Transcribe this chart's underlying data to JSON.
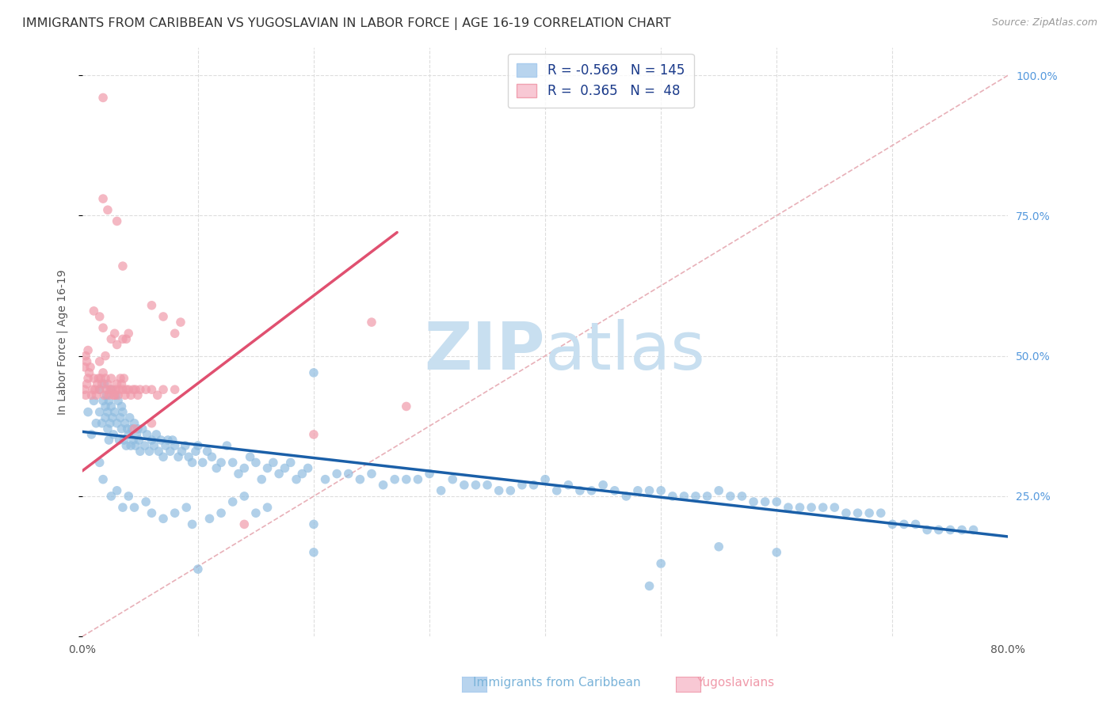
{
  "title": "IMMIGRANTS FROM CARIBBEAN VS YUGOSLAVIAN IN LABOR FORCE | AGE 16-19 CORRELATION CHART",
  "source": "Source: ZipAtlas.com",
  "ylabel": "In Labor Force | Age 16-19",
  "x_range": [
    0.0,
    0.8
  ],
  "y_range": [
    0.0,
    1.05
  ],
  "scatter_caribbean": {
    "color": "#90bde0",
    "alpha": 0.7,
    "size": 70,
    "x": [
      0.005,
      0.008,
      0.01,
      0.012,
      0.015,
      0.015,
      0.017,
      0.018,
      0.019,
      0.02,
      0.02,
      0.021,
      0.022,
      0.022,
      0.023,
      0.023,
      0.024,
      0.025,
      0.025,
      0.026,
      0.027,
      0.028,
      0.029,
      0.03,
      0.031,
      0.032,
      0.033,
      0.034,
      0.034,
      0.035,
      0.036,
      0.037,
      0.038,
      0.039,
      0.04,
      0.041,
      0.042,
      0.043,
      0.044,
      0.045,
      0.046,
      0.047,
      0.048,
      0.049,
      0.05,
      0.052,
      0.054,
      0.056,
      0.058,
      0.06,
      0.062,
      0.064,
      0.066,
      0.068,
      0.07,
      0.072,
      0.074,
      0.076,
      0.078,
      0.08,
      0.083,
      0.086,
      0.089,
      0.092,
      0.095,
      0.098,
      0.1,
      0.104,
      0.108,
      0.112,
      0.116,
      0.12,
      0.125,
      0.13,
      0.135,
      0.14,
      0.145,
      0.15,
      0.155,
      0.16,
      0.165,
      0.17,
      0.175,
      0.18,
      0.185,
      0.19,
      0.195,
      0.2,
      0.21,
      0.22,
      0.23,
      0.24,
      0.25,
      0.26,
      0.27,
      0.28,
      0.29,
      0.3,
      0.31,
      0.32,
      0.33,
      0.34,
      0.35,
      0.36,
      0.37,
      0.38,
      0.39,
      0.4,
      0.41,
      0.42,
      0.43,
      0.44,
      0.45,
      0.46,
      0.47,
      0.48,
      0.49,
      0.5,
      0.51,
      0.52,
      0.53,
      0.54,
      0.55,
      0.56,
      0.57,
      0.58,
      0.59,
      0.6,
      0.61,
      0.62,
      0.63,
      0.64,
      0.65,
      0.66,
      0.67,
      0.68,
      0.69,
      0.7,
      0.71,
      0.72,
      0.73,
      0.74,
      0.75,
      0.76,
      0.77
    ],
    "y": [
      0.4,
      0.36,
      0.42,
      0.38,
      0.44,
      0.4,
      0.38,
      0.42,
      0.45,
      0.39,
      0.41,
      0.43,
      0.37,
      0.4,
      0.35,
      0.42,
      0.38,
      0.41,
      0.44,
      0.39,
      0.36,
      0.4,
      0.43,
      0.38,
      0.42,
      0.35,
      0.39,
      0.41,
      0.37,
      0.4,
      0.35,
      0.38,
      0.34,
      0.37,
      0.36,
      0.39,
      0.34,
      0.37,
      0.35,
      0.38,
      0.34,
      0.36,
      0.37,
      0.35,
      0.33,
      0.37,
      0.34,
      0.36,
      0.33,
      0.35,
      0.34,
      0.36,
      0.33,
      0.35,
      0.32,
      0.34,
      0.35,
      0.33,
      0.35,
      0.34,
      0.32,
      0.33,
      0.34,
      0.32,
      0.31,
      0.33,
      0.34,
      0.31,
      0.33,
      0.32,
      0.3,
      0.31,
      0.34,
      0.31,
      0.29,
      0.3,
      0.32,
      0.31,
      0.28,
      0.3,
      0.31,
      0.29,
      0.3,
      0.31,
      0.28,
      0.29,
      0.3,
      0.47,
      0.28,
      0.29,
      0.29,
      0.28,
      0.29,
      0.27,
      0.28,
      0.28,
      0.28,
      0.29,
      0.26,
      0.28,
      0.27,
      0.27,
      0.27,
      0.26,
      0.26,
      0.27,
      0.27,
      0.28,
      0.26,
      0.27,
      0.26,
      0.26,
      0.27,
      0.26,
      0.25,
      0.26,
      0.26,
      0.26,
      0.25,
      0.25,
      0.25,
      0.25,
      0.26,
      0.25,
      0.25,
      0.24,
      0.24,
      0.24,
      0.23,
      0.23,
      0.23,
      0.23,
      0.23,
      0.22,
      0.22,
      0.22,
      0.22,
      0.2,
      0.2,
      0.2,
      0.19,
      0.19,
      0.19,
      0.19,
      0.19
    ]
  },
  "scatter_caribbean_extra": {
    "x": [
      0.015,
      0.018,
      0.025,
      0.03,
      0.035,
      0.04,
      0.045,
      0.055,
      0.06,
      0.07,
      0.08,
      0.09,
      0.095,
      0.1,
      0.11,
      0.12,
      0.13,
      0.14,
      0.15,
      0.16,
      0.2,
      0.2,
      0.5,
      0.49,
      0.55,
      0.6
    ],
    "y": [
      0.31,
      0.28,
      0.25,
      0.26,
      0.23,
      0.25,
      0.23,
      0.24,
      0.22,
      0.21,
      0.22,
      0.23,
      0.2,
      0.12,
      0.21,
      0.22,
      0.24,
      0.25,
      0.22,
      0.23,
      0.2,
      0.15,
      0.13,
      0.09,
      0.16,
      0.15
    ]
  },
  "scatter_yugoslavian": {
    "color": "#f09aaa",
    "alpha": 0.7,
    "size": 70,
    "x": [
      0.002,
      0.003,
      0.004,
      0.005,
      0.006,
      0.007,
      0.008,
      0.009,
      0.01,
      0.011,
      0.012,
      0.013,
      0.014,
      0.015,
      0.016,
      0.017,
      0.018,
      0.019,
      0.02,
      0.021,
      0.022,
      0.023,
      0.024,
      0.025,
      0.026,
      0.027,
      0.028,
      0.029,
      0.03,
      0.031,
      0.032,
      0.033,
      0.034,
      0.035,
      0.036,
      0.037,
      0.038,
      0.04,
      0.042,
      0.044,
      0.046,
      0.048,
      0.05,
      0.055,
      0.06,
      0.065,
      0.07,
      0.08
    ],
    "y": [
      0.44,
      0.43,
      0.45,
      0.46,
      0.47,
      0.48,
      0.43,
      0.44,
      0.46,
      0.44,
      0.43,
      0.45,
      0.46,
      0.44,
      0.46,
      0.45,
      0.47,
      0.43,
      0.46,
      0.44,
      0.45,
      0.43,
      0.44,
      0.46,
      0.44,
      0.43,
      0.43,
      0.44,
      0.45,
      0.43,
      0.44,
      0.46,
      0.45,
      0.44,
      0.46,
      0.43,
      0.44,
      0.44,
      0.43,
      0.44,
      0.44,
      0.43,
      0.44,
      0.44,
      0.44,
      0.43,
      0.44,
      0.44
    ]
  },
  "scatter_yugoslavian_extra": {
    "x": [
      0.002,
      0.003,
      0.004,
      0.005,
      0.015,
      0.02,
      0.06,
      0.07,
      0.08,
      0.085,
      0.025,
      0.035,
      0.028,
      0.03,
      0.038,
      0.04,
      0.018,
      0.015,
      0.01
    ],
    "y": [
      0.48,
      0.5,
      0.49,
      0.51,
      0.49,
      0.5,
      0.59,
      0.57,
      0.54,
      0.56,
      0.53,
      0.53,
      0.54,
      0.52,
      0.53,
      0.54,
      0.55,
      0.57,
      0.58
    ]
  },
  "scatter_yugoslavian_outlier": {
    "x": [
      0.018
    ],
    "y": [
      0.96
    ]
  },
  "scatter_yugoslavian_medium": {
    "x": [
      0.018,
      0.022,
      0.03,
      0.035,
      0.045,
      0.06,
      0.14,
      0.2,
      0.25,
      0.28
    ],
    "y": [
      0.78,
      0.76,
      0.74,
      0.66,
      0.37,
      0.38,
      0.2,
      0.36,
      0.56,
      0.41
    ]
  },
  "trend_caribbean": {
    "color": "#1a5fa8",
    "linewidth": 2.5,
    "x_start": 0.0,
    "x_end": 0.8,
    "y_start": 0.365,
    "y_end": 0.178
  },
  "trend_yugoslavian": {
    "color": "#e05070",
    "linewidth": 2.5,
    "x_start": 0.0,
    "x_end": 0.272,
    "y_start": 0.295,
    "y_end": 0.72
  },
  "diagonal_color": "#e8b0b8",
  "diagonal_linestyle": "--",
  "watermark_zip": "ZIP",
  "watermark_atlas": "atlas",
  "watermark_color": "#c8dff0",
  "watermark_fontsize": 60,
  "bottom_labels": [
    "Immigrants from Caribbean",
    "Yugoslavians"
  ],
  "bottom_label_colors": [
    "#7ab3d9",
    "#f09aaa"
  ],
  "title_fontsize": 11.5,
  "axis_label_fontsize": 10,
  "tick_label_fontsize": 10,
  "right_tick_color": "#5599dd",
  "legend_blue_fc": "#b8d4ee",
  "legend_pink_fc": "#f8c8d4",
  "legend_text_color": "#1a3a8a",
  "legend_n_color": "#2266cc"
}
